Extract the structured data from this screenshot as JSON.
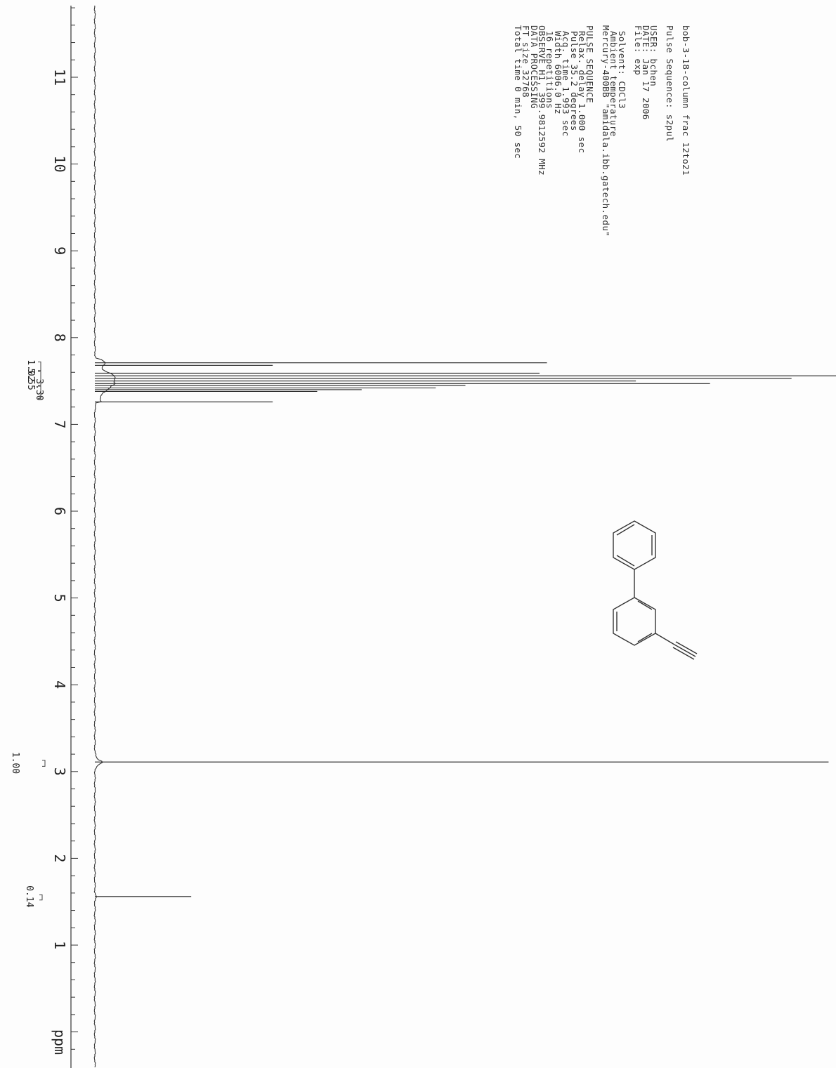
{
  "header": {
    "title": "bob-3-18-column frac 12to21",
    "pulse_sequence": "Pulse Sequence: s2pul"
  },
  "params": {
    "user": "USER: bchen",
    "date": "DATE: Jan 17 2006",
    "file": "File: exp",
    "solvent": "Solvent: CDCl3",
    "temperature": "Ambient temperature",
    "instrument": "Mercury-400BB \"amidala.ibb.gatech.edu\"",
    "pulse_seq_header": "PULSE SEQUENCE",
    "relax_delay": "Relax. delay 1.000 sec",
    "pulse": "Pulse 35.2 degrees",
    "acq_time": "Acq. time 1.993 sec",
    "width": "Width 6006.0 Hz",
    "repetitions": "16 repetitions",
    "observe": "OBSERVE   H1, 399.9812592 MHz",
    "data_processing": "DATA PROCESSING",
    "ft_size": "FT size 32768",
    "total_time": "Total time 0 min, 50 sec"
  },
  "chart_data": {
    "type": "line",
    "title": "bob-3-18-column frac 12to21",
    "xlabel": "ppm",
    "ylabel": "",
    "xlim": [
      11.8,
      -0.5
    ],
    "x_reversed": true,
    "x_ticks": [
      11,
      10,
      9,
      8,
      7,
      6,
      5,
      4,
      3,
      2,
      1
    ],
    "x_unit_label": "ppm",
    "peaks": [
      {
        "ppm": 7.71,
        "intensity": 0.61
      },
      {
        "ppm": 7.68,
        "intensity": 0.24
      },
      {
        "ppm": 7.59,
        "intensity": 0.6
      },
      {
        "ppm": 7.56,
        "intensity": 1.0
      },
      {
        "ppm": 7.53,
        "intensity": 0.94
      },
      {
        "ppm": 7.5,
        "intensity": 0.73
      },
      {
        "ppm": 7.47,
        "intensity": 0.83
      },
      {
        "ppm": 7.45,
        "intensity": 0.5
      },
      {
        "ppm": 7.42,
        "intensity": 0.46
      },
      {
        "ppm": 7.4,
        "intensity": 0.36
      },
      {
        "ppm": 7.38,
        "intensity": 0.3
      },
      {
        "ppm": 7.26,
        "intensity": 0.24
      },
      {
        "ppm": 3.11,
        "intensity": 0.99
      },
      {
        "ppm": 1.56,
        "intensity": 0.13
      }
    ],
    "integrals": [
      {
        "ppm": 7.62,
        "label": "1.02"
      },
      {
        "ppm": 7.52,
        "label": "5.55"
      },
      {
        "ppm": 7.4,
        "label": "3.30"
      },
      {
        "ppm": 3.1,
        "label": "1.00"
      },
      {
        "ppm": 1.56,
        "label": "0.14"
      }
    ],
    "structure": "3-ethynylbiphenyl"
  }
}
